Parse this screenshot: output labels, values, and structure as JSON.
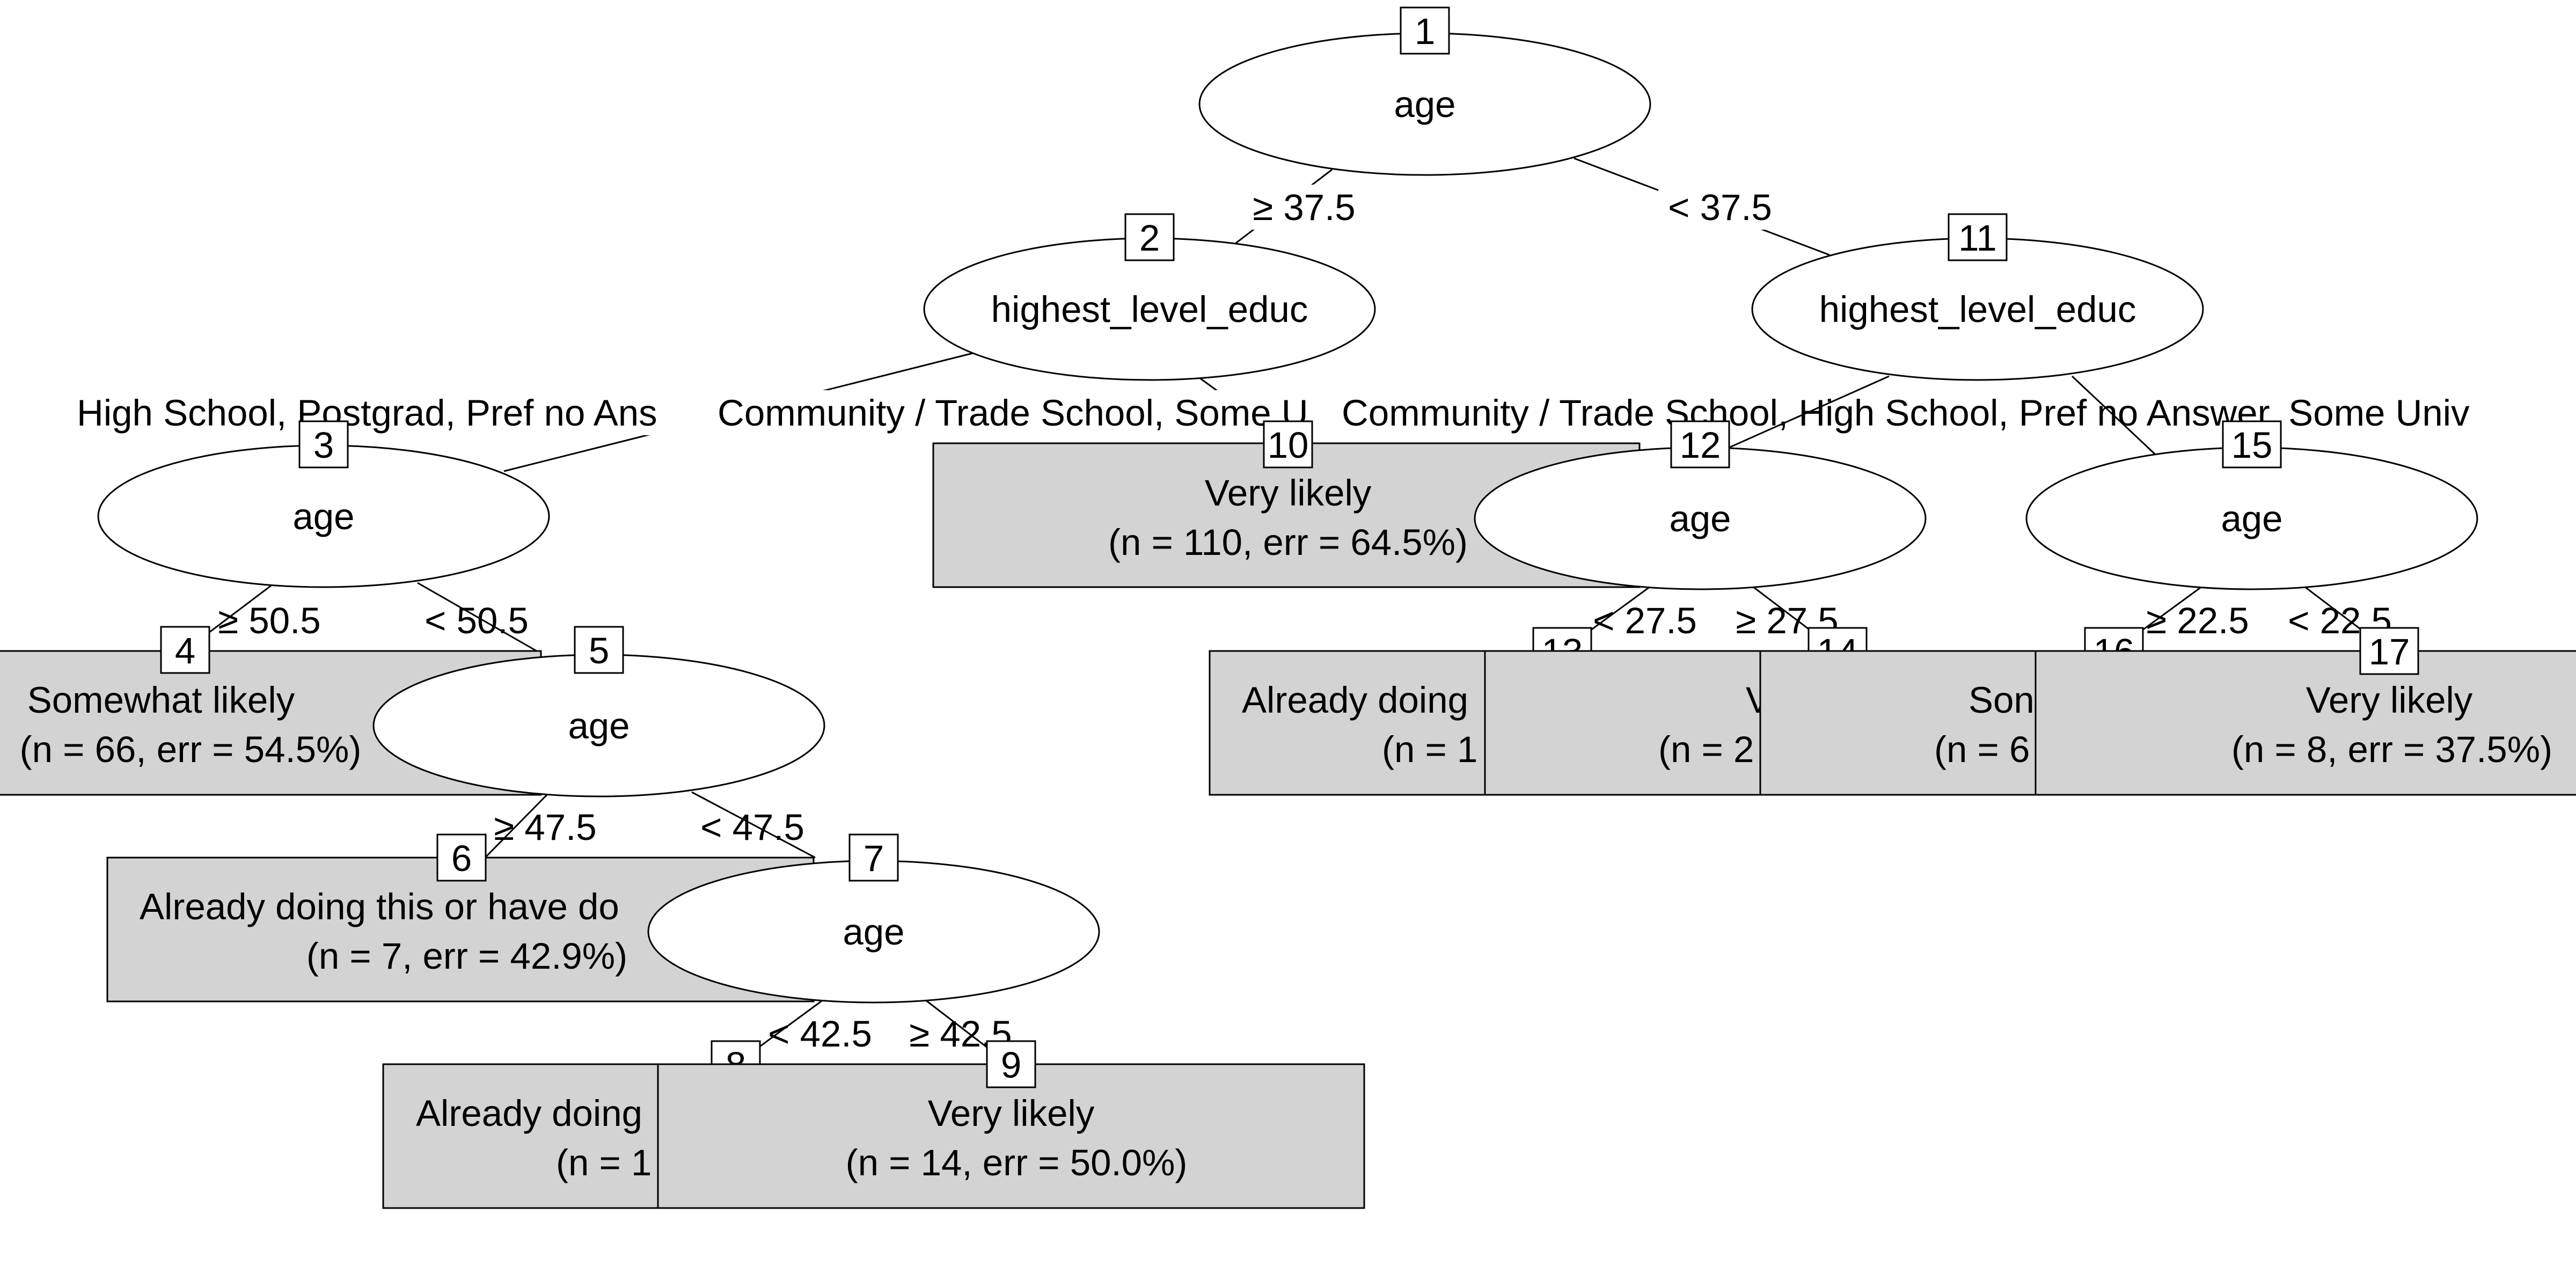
{
  "tree": {
    "nodes": {
      "n1": {
        "id": "1",
        "label": "age"
      },
      "n2": {
        "id": "2",
        "label": "highest_level_educ"
      },
      "n3": {
        "id": "3",
        "label": "age"
      },
      "n4": {
        "id": "4",
        "line1": "Somewhat likely",
        "line2": "(n = 66, err = 54.5%)"
      },
      "n5": {
        "id": "5",
        "label": "age"
      },
      "n6": {
        "id": "6",
        "line1": "Already doing this or have do",
        "line2": "(n = 7, err = 42.9%)"
      },
      "n7": {
        "id": "7",
        "label": "age"
      },
      "n8": {
        "id": "8",
        "line1": "Already doing",
        "line2": "(n = 1"
      },
      "n9": {
        "id": "9",
        "line1": "Very likely",
        "line2": "(n = 14, err = 50.0%)"
      },
      "n10": {
        "id": "10",
        "line1": "Very likely",
        "line2": "(n = 110, err = 64.5%)"
      },
      "n11": {
        "id": "11",
        "label": "highest_level_educ"
      },
      "n12": {
        "id": "12",
        "label": "age"
      },
      "n13": {
        "id": "13",
        "line1": "Already doing",
        "line2": "(n = 1"
      },
      "n14": {
        "id": "14",
        "line1": "V",
        "line2": "(n = 2"
      },
      "n15": {
        "id": "15",
        "label": "age"
      },
      "n16": {
        "id": "16",
        "line1": "Son",
        "line2": "(n = 6"
      },
      "n17": {
        "id": "17",
        "line1": "Very likely",
        "line2": "(n = 8, err = 37.5%)"
      }
    },
    "edges": {
      "e1_2": "≥ 37.5",
      "e1_11": "< 37.5",
      "e2_3": "High School, Postgrad, Pref no Ans",
      "e2_10": "Community / Trade School, Some U",
      "e11_12": "Community / Trade School, High School, Pref no Answer, Some Univ",
      "e3_4": "≥ 50.5",
      "e3_5": "< 50.5",
      "e5_6": "≥ 47.5",
      "e5_7": "< 47.5",
      "e7_8": "< 42.5",
      "e7_9": "≥ 42.5",
      "e12_13": "< 27.5",
      "e12_14": "≥ 27.5",
      "e15_16": "≥ 22.5",
      "e15_17": "< 22.5"
    }
  }
}
